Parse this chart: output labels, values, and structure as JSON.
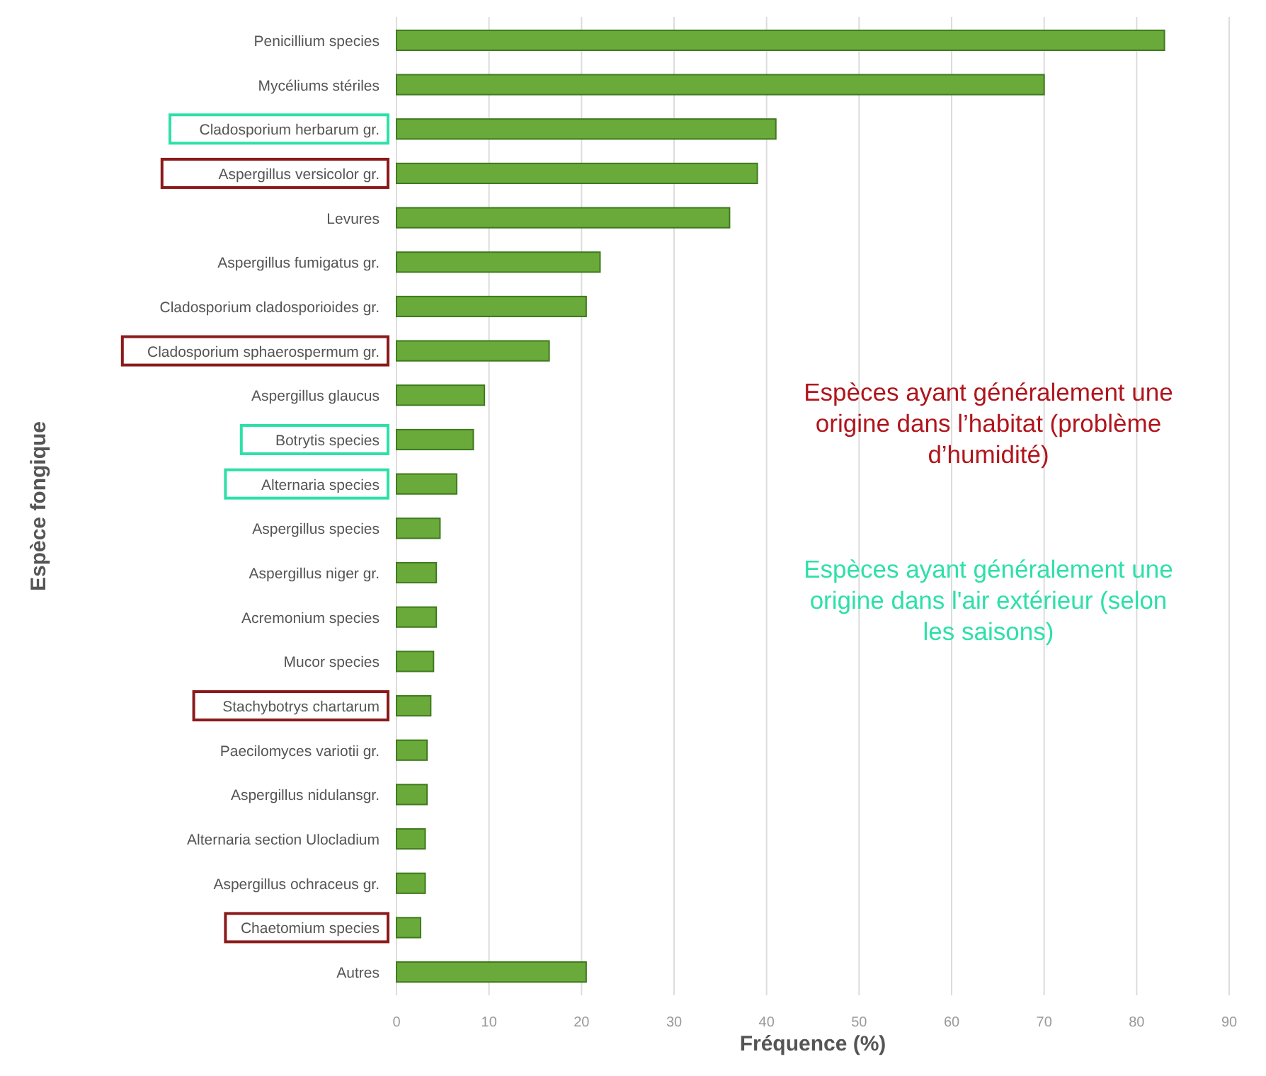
{
  "chart_data": {
    "type": "bar",
    "orientation": "horizontal",
    "xlabel": "Fréquence (%)",
    "ylabel": "Espèce fongique",
    "categories": [
      "Penicillium species",
      "Mycéliums stériles",
      "Cladosporium herbarum gr.",
      "Aspergillus versicolor gr.",
      "Levures",
      "Aspergillus fumigatus gr.",
      "Cladosporium cladosporioides gr.",
      "Cladosporium sphaerospermum gr.",
      "Aspergillus glaucus",
      "Botrytis species",
      "Alternaria species",
      "Aspergillus species",
      "Aspergillus niger gr.",
      "Acremonium species",
      "Mucor species",
      "Stachybotrys chartarum",
      "Paecilomyces variotii gr.",
      "Aspergillus nidulansgr.",
      "Alternaria section Ulocladium",
      "Aspergillus ochraceus gr.",
      "Chaetomium species",
      "Autres"
    ],
    "values": [
      83,
      70,
      41,
      39,
      36,
      22,
      20.5,
      16.5,
      9.5,
      8.3,
      6.5,
      4.7,
      4.3,
      4.3,
      4,
      3.7,
      3.3,
      3.3,
      3.1,
      3.1,
      2.6,
      20.5
    ],
    "color": "#6aaa3a",
    "xlim": [
      0,
      90
    ],
    "xticks": [
      0,
      10,
      20,
      30,
      40,
      50,
      60,
      70,
      80,
      90
    ],
    "grid": "x",
    "annotations": [
      "Espèces ayant généralement une origine dans l’habitat (problème d’humidité)",
      "Espèces ayant généralement une origine dans l'air extérieur (selon les saisons)"
    ]
  }
}
